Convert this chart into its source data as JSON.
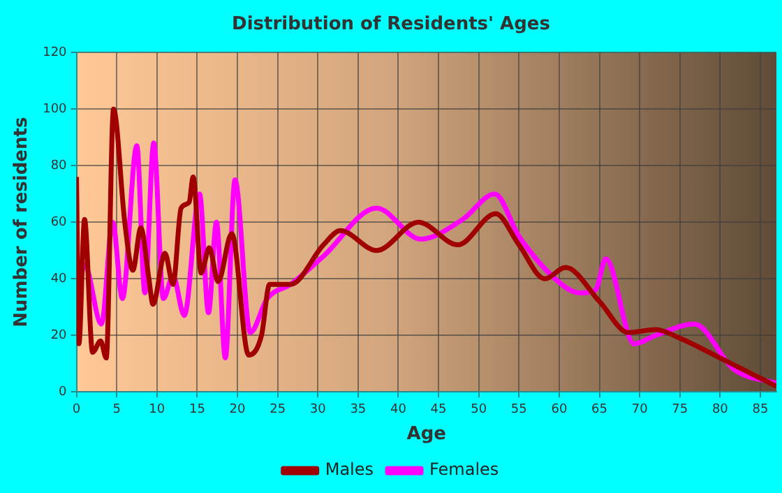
{
  "chart_data": {
    "type": "line",
    "title": "Distribution of Residents' Ages",
    "xlabel": "Age",
    "ylabel": "Number of residents",
    "xlim": [
      0,
      87
    ],
    "xticks": [
      0,
      5,
      10,
      15,
      20,
      25,
      30,
      35,
      40,
      45,
      50,
      55,
      60,
      65,
      70,
      75,
      80,
      85
    ],
    "ylim": [
      0,
      120
    ],
    "yticks": [
      0,
      20,
      40,
      60,
      80,
      100,
      120
    ],
    "grid": true,
    "legend": "bottom",
    "marker": "none",
    "line_style": "solid",
    "series": [
      {
        "name": "Males",
        "color": "#a00000",
        "x": [
          0,
          0.3,
          1,
          2,
          3,
          3.7,
          4.6,
          6,
          7,
          8,
          9,
          9.5,
          11,
          12,
          13,
          14,
          14.5,
          15.5,
          16.5,
          17.6,
          19.3,
          21.4,
          23,
          24,
          26.6,
          30.7,
          32.8,
          37.3,
          42.5,
          47.4,
          52.1,
          55,
          58.2,
          60.8,
          65,
          68.6,
          72,
          75,
          80,
          87
        ],
        "values": [
          76,
          17,
          61,
          14,
          18,
          12,
          100,
          60,
          43,
          58,
          40,
          31,
          49,
          38,
          65,
          67,
          76,
          42,
          51,
          39,
          56,
          13,
          20,
          38,
          38,
          52,
          57,
          50,
          60,
          52,
          63,
          52,
          40,
          44,
          32,
          21,
          22,
          19,
          12,
          2
        ]
      },
      {
        "name": "Females",
        "color": "#ff00ff",
        "x": [
          0.5,
          1,
          3.1,
          4.5,
          5.7,
          7.5,
          8.5,
          9.6,
          10.8,
          12,
          13.4,
          15.3,
          16.4,
          17.4,
          18.5,
          19.7,
          21.6,
          23.7,
          26.6,
          30.7,
          37.3,
          42.8,
          48,
          52,
          55,
          60.3,
          62.5,
          64.5,
          65.8,
          69.3,
          72,
          76.8,
          81.7,
          87
        ],
        "values": [
          40,
          45,
          24,
          60,
          33,
          87,
          35,
          88,
          33,
          41,
          27,
          70,
          28,
          60,
          12,
          75,
          21,
          33,
          38,
          48,
          65,
          54,
          61,
          70,
          55,
          38,
          35,
          36,
          47,
          17,
          20,
          24,
          8,
          3
        ]
      }
    ]
  }
}
